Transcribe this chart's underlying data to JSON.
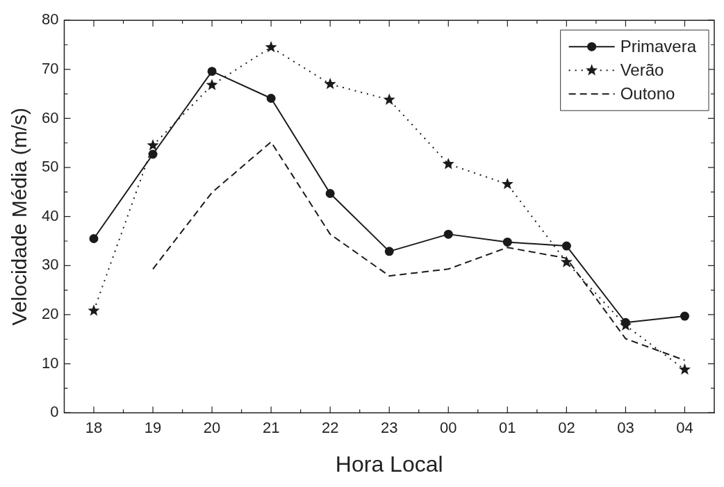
{
  "chart_data": {
    "type": "line",
    "xlabel": "Hora Local",
    "ylabel": "Velocidade Média (m/s)",
    "categories": [
      "18",
      "19",
      "20",
      "21",
      "22",
      "23",
      "00",
      "01",
      "02",
      "03",
      "04"
    ],
    "series": [
      {
        "name": "Primavera",
        "color": "#1a1a1a",
        "marker": "circle",
        "line_style": "solid",
        "values": [
          35.5,
          52.7,
          69.6,
          64.1,
          44.7,
          32.9,
          36.4,
          34.8,
          34.0,
          18.4,
          19.7
        ]
      },
      {
        "name": "Verão",
        "color": "#1a1a1a",
        "marker": "star",
        "line_style": "dotted",
        "values": [
          20.8,
          54.5,
          66.8,
          74.5,
          67.0,
          63.8,
          50.7,
          46.6,
          30.7,
          17.8,
          8.8
        ]
      },
      {
        "name": "Outono",
        "color": "#1a1a1a",
        "marker": "none",
        "line_style": "dashed",
        "values": [
          null,
          29.3,
          44.9,
          55.2,
          36.4,
          27.9,
          29.3,
          33.7,
          31.5,
          15.1,
          10.7
        ]
      }
    ],
    "ylim": [
      0,
      80
    ],
    "yticks": [
      0,
      10,
      20,
      30,
      40,
      50,
      60,
      70,
      80
    ],
    "grid": false,
    "legend": "top right"
  }
}
